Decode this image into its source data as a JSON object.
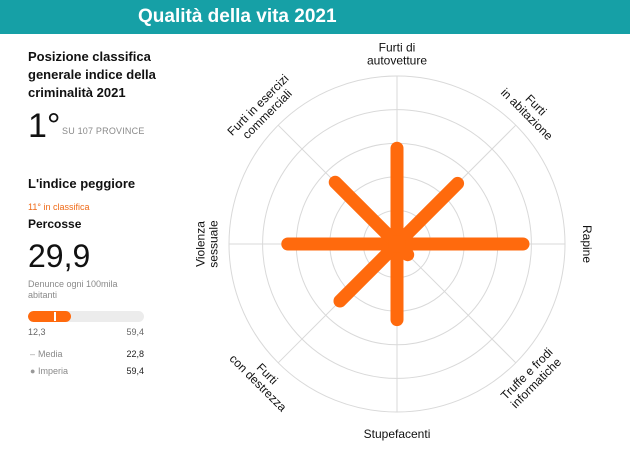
{
  "header": {
    "title": "Qualità della vita 2021"
  },
  "colors": {
    "header_bg": "#16a0a6",
    "accent": "#ff6a0d",
    "grid": "#d9d9d9"
  },
  "ranking": {
    "title": "Posizione classifica generale indice della criminalità 2021",
    "value": "1°",
    "subtitle": "SU 107 PROVINCE"
  },
  "worst": {
    "title": "L'indice peggiore",
    "rank_text": "11° in classifica",
    "name": "Percosse",
    "value": "29,9",
    "description": "Denunce ogni 100mila abitanti",
    "bar": {
      "min": "12,3",
      "max": "59,4",
      "min_value": 12.3,
      "max_value": 59.4,
      "value": 29.9,
      "median": 22.8
    },
    "legend": [
      {
        "symbol": "–",
        "label": "Media",
        "value": "22,8"
      },
      {
        "symbol": "●",
        "label": "Imperia",
        "value": "59,4"
      }
    ]
  },
  "chart_data": {
    "type": "radar",
    "categories": [
      "Furti di autovetture",
      "Furti in abitazione",
      "Rapine",
      "Truffe e frodi informatiche",
      "Stupefacenti",
      "Furti con destrezza",
      "Violenza sessuale",
      "Furti in esercizi commerciali"
    ],
    "category_lines": [
      [
        "Furti di",
        "autovetture"
      ],
      [
        "Furti",
        "in abitazione"
      ],
      [
        "Rapine"
      ],
      [
        "Truffe e frodi",
        "informatiche"
      ],
      [
        "Stupefacenti"
      ],
      [
        "Furti",
        "con destrezza"
      ],
      [
        "Violenza",
        "sessuale"
      ],
      [
        "Furti in esercizi",
        "commerciali"
      ]
    ],
    "values": [
      0.57,
      0.51,
      0.75,
      0.09,
      0.45,
      0.48,
      0.65,
      0.52
    ],
    "scale_max": 1,
    "rings": 5,
    "grid": true,
    "color": "#ff6a0d"
  }
}
